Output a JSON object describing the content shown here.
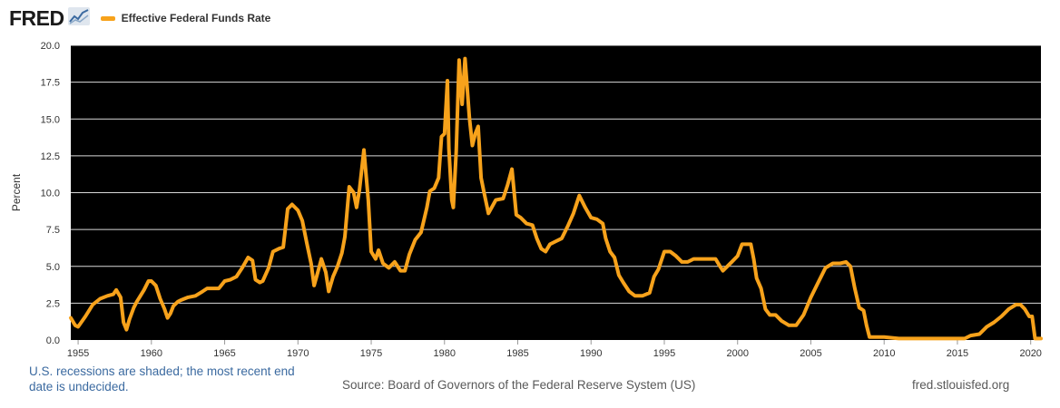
{
  "header": {
    "logo_text": "FRED",
    "logo_icon": "chart-line-icon"
  },
  "colors": {
    "series": "#f7a21b",
    "plot_background": "#000000",
    "grid": "#ffffff",
    "footer_note": "#3b6aa0"
  },
  "footer": {
    "note": "U.S. recessions are shaded; the most recent end date is undecided.",
    "source": "Source: Board of Governors of the Federal Reserve System (US)",
    "url": "fred.stlouisfed.org"
  },
  "chart_data": {
    "type": "line",
    "title": "",
    "xlabel": "",
    "ylabel": "Percent",
    "xlim": [
      1954.5,
      2020.7
    ],
    "ylim": [
      0,
      20
    ],
    "y_ticks": [
      "0.0",
      "2.5",
      "5.0",
      "7.5",
      "10.0",
      "12.5",
      "15.0",
      "17.5",
      "20.0"
    ],
    "x_ticks": [
      "1955",
      "1960",
      "1965",
      "1970",
      "1975",
      "1980",
      "1985",
      "1990",
      "1995",
      "2000",
      "2005",
      "2010",
      "2015",
      "2020"
    ],
    "grid": true,
    "legend": "top-left",
    "series": [
      {
        "name": "Effective Federal Funds Rate",
        "x": [
          1954.5,
          1954.8,
          1955.0,
          1955.5,
          1956.0,
          1956.5,
          1957.0,
          1957.4,
          1957.6,
          1957.9,
          1958.1,
          1958.3,
          1958.5,
          1958.8,
          1959.0,
          1959.5,
          1959.8,
          1960.0,
          1960.3,
          1960.6,
          1960.9,
          1961.1,
          1961.3,
          1961.5,
          1961.8,
          1962.0,
          1962.5,
          1963.0,
          1963.5,
          1963.8,
          1964.2,
          1964.6,
          1965.0,
          1965.4,
          1965.8,
          1966.2,
          1966.6,
          1966.9,
          1967.1,
          1967.4,
          1967.6,
          1968.0,
          1968.3,
          1968.7,
          1969.0,
          1969.3,
          1969.6,
          1970.0,
          1970.3,
          1970.6,
          1970.9,
          1971.1,
          1971.3,
          1971.6,
          1971.9,
          1972.1,
          1972.4,
          1972.7,
          1973.0,
          1973.2,
          1973.5,
          1973.8,
          1974.0,
          1974.2,
          1974.5,
          1974.8,
          1975.0,
          1975.3,
          1975.5,
          1975.8,
          1976.2,
          1976.6,
          1977.0,
          1977.3,
          1977.6,
          1978.0,
          1978.4,
          1978.8,
          1979.0,
          1979.3,
          1979.6,
          1979.8,
          1980.0,
          1980.2,
          1980.3,
          1980.5,
          1980.6,
          1980.8,
          1981.0,
          1981.2,
          1981.4,
          1981.5,
          1981.7,
          1981.9,
          1982.1,
          1982.3,
          1982.5,
          1982.7,
          1983.0,
          1983.5,
          1984.0,
          1984.3,
          1984.6,
          1984.9,
          1985.2,
          1985.6,
          1986.0,
          1986.3,
          1986.6,
          1986.9,
          1987.2,
          1987.6,
          1988.0,
          1988.4,
          1988.8,
          1989.2,
          1989.6,
          1990.0,
          1990.4,
          1990.8,
          1991.0,
          1991.3,
          1991.6,
          1991.9,
          1992.2,
          1992.6,
          1993.0,
          1993.5,
          1994.0,
          1994.3,
          1994.6,
          1995.0,
          1995.4,
          1995.8,
          1996.2,
          1996.6,
          1997.0,
          1997.5,
          1998.0,
          1998.5,
          1998.8,
          1999.0,
          1999.3,
          1999.6,
          2000.0,
          2000.3,
          2000.6,
          2000.9,
          2001.1,
          2001.3,
          2001.6,
          2001.9,
          2002.2,
          2002.6,
          2003.0,
          2003.5,
          2004.0,
          2004.5,
          2005.0,
          2005.5,
          2006.0,
          2006.5,
          2007.0,
          2007.4,
          2007.7,
          2008.0,
          2008.3,
          2008.6,
          2008.8,
          2009.0,
          2009.5,
          2010.0,
          2011.0,
          2012.0,
          2013.0,
          2014.0,
          2015.0,
          2015.5,
          2015.9,
          2016.5,
          2017.0,
          2017.5,
          2018.0,
          2018.5,
          2019.0,
          2019.3,
          2019.6,
          2019.9,
          2020.1,
          2020.3,
          2020.7
        ],
        "values": [
          1.5,
          1.0,
          0.9,
          1.6,
          2.4,
          2.8,
          3.0,
          3.1,
          3.4,
          2.9,
          1.2,
          0.7,
          1.4,
          2.2,
          2.6,
          3.4,
          4.0,
          4.0,
          3.7,
          2.8,
          2.1,
          1.5,
          1.8,
          2.3,
          2.6,
          2.7,
          2.9,
          3.0,
          3.3,
          3.5,
          3.5,
          3.5,
          4.0,
          4.1,
          4.3,
          4.9,
          5.6,
          5.4,
          4.1,
          3.9,
          4.0,
          4.9,
          6.0,
          6.2,
          6.3,
          8.9,
          9.2,
          8.8,
          8.1,
          6.6,
          5.2,
          3.7,
          4.4,
          5.5,
          4.6,
          3.3,
          4.3,
          5.0,
          5.9,
          7.0,
          10.4,
          10.0,
          9.0,
          10.2,
          12.9,
          9.5,
          6.0,
          5.5,
          6.1,
          5.2,
          4.9,
          5.3,
          4.7,
          4.7,
          5.8,
          6.8,
          7.3,
          9.0,
          10.1,
          10.3,
          11.0,
          13.8,
          14.0,
          17.6,
          13.0,
          9.5,
          9.0,
          12.8,
          19.0,
          16.0,
          19.1,
          17.8,
          15.1,
          13.2,
          14.0,
          14.5,
          11.0,
          10.0,
          8.6,
          9.5,
          9.6,
          10.5,
          11.6,
          8.5,
          8.3,
          7.9,
          7.8,
          6.9,
          6.2,
          6.0,
          6.5,
          6.7,
          6.9,
          7.7,
          8.6,
          9.8,
          9.0,
          8.3,
          8.2,
          7.9,
          6.9,
          6.0,
          5.6,
          4.4,
          3.9,
          3.3,
          3.0,
          3.0,
          3.2,
          4.3,
          4.8,
          6.0,
          6.0,
          5.7,
          5.3,
          5.3,
          5.5,
          5.5,
          5.5,
          5.5,
          5.0,
          4.7,
          5.0,
          5.3,
          5.7,
          6.5,
          6.5,
          6.5,
          5.5,
          4.2,
          3.5,
          2.1,
          1.7,
          1.7,
          1.3,
          1.0,
          1.0,
          1.7,
          2.9,
          3.9,
          4.9,
          5.2,
          5.2,
          5.3,
          5.0,
          3.5,
          2.2,
          2.0,
          1.0,
          0.2,
          0.2,
          0.2,
          0.1,
          0.1,
          0.1,
          0.1,
          0.1,
          0.1,
          0.3,
          0.4,
          0.9,
          1.2,
          1.6,
          2.1,
          2.4,
          2.4,
          2.1,
          1.6,
          1.6,
          0.1,
          0.1
        ]
      }
    ]
  }
}
